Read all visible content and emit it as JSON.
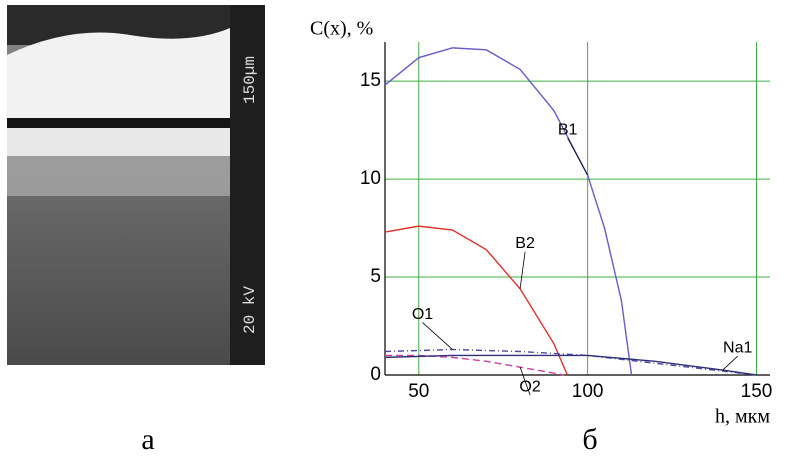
{
  "micrograph": {
    "scale_label": "150µm",
    "voltage_label": "20 kV",
    "caption": "а"
  },
  "chart_data": {
    "type": "line",
    "caption": "б",
    "y_label": "C(x), %",
    "x_label": "h, мкм",
    "xlim": [
      40,
      154
    ],
    "ylim": [
      0,
      17
    ],
    "xticks": [
      50,
      100,
      150
    ],
    "yticks": [
      0,
      5,
      10,
      15
    ],
    "grid": true,
    "grid_color": "#3cb043",
    "series": [
      {
        "name": "B1",
        "color": "#6a5acd",
        "dash": "none",
        "x": [
          40,
          50,
          60,
          70,
          80,
          90,
          100,
          105,
          110,
          113
        ],
        "values": [
          14.8,
          16.2,
          16.7,
          16.6,
          15.6,
          13.5,
          10.2,
          7.5,
          3.8,
          0
        ]
      },
      {
        "name": "B2",
        "color": "#e0302a",
        "dash": "none",
        "x": [
          40,
          50,
          60,
          70,
          80,
          90,
          94
        ],
        "values": [
          7.3,
          7.6,
          7.4,
          6.4,
          4.4,
          1.6,
          0
        ]
      },
      {
        "name": "O1",
        "color": "#4a4aa0",
        "dash": "6 3 1 3",
        "x": [
          40,
          60,
          80,
          100,
          120,
          140,
          150
        ],
        "values": [
          1.2,
          1.3,
          1.2,
          1.0,
          0.6,
          0.2,
          0
        ]
      },
      {
        "name": "O2",
        "color": "#d040a0",
        "dash": "7 4",
        "x": [
          40,
          50,
          60,
          70,
          80,
          90,
          93
        ],
        "values": [
          1.0,
          1.0,
          0.9,
          0.7,
          0.4,
          0.1,
          0
        ]
      },
      {
        "name": "Na1",
        "color": "#30307a",
        "dash": "none",
        "x": [
          40,
          60,
          80,
          100,
          120,
          140,
          150
        ],
        "values": [
          0.9,
          1.0,
          1.0,
          1.0,
          0.7,
          0.25,
          0
        ]
      }
    ]
  }
}
